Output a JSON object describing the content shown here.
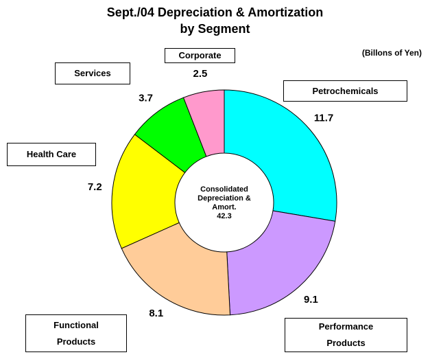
{
  "chart_data": {
    "type": "donut",
    "title": [
      "Sept./04 Depreciation & Amortization",
      "by Segment"
    ],
    "subtitle": "(Billons of Yen)",
    "categories": [
      "Petrochemicals",
      "Performance Products",
      "Functional Products",
      "Health Care",
      "Services",
      "Corporate"
    ],
    "values": [
      11.7,
      9.1,
      8.1,
      7.2,
      3.7,
      2.5
    ],
    "colors": [
      "#00ffff",
      "#cc99ff",
      "#ffcc99",
      "#ffff00",
      "#00ff00",
      "#ff99cc"
    ],
    "center_label": "Consolidated Depreciation & Amort.",
    "center_value": 42.3
  }
}
